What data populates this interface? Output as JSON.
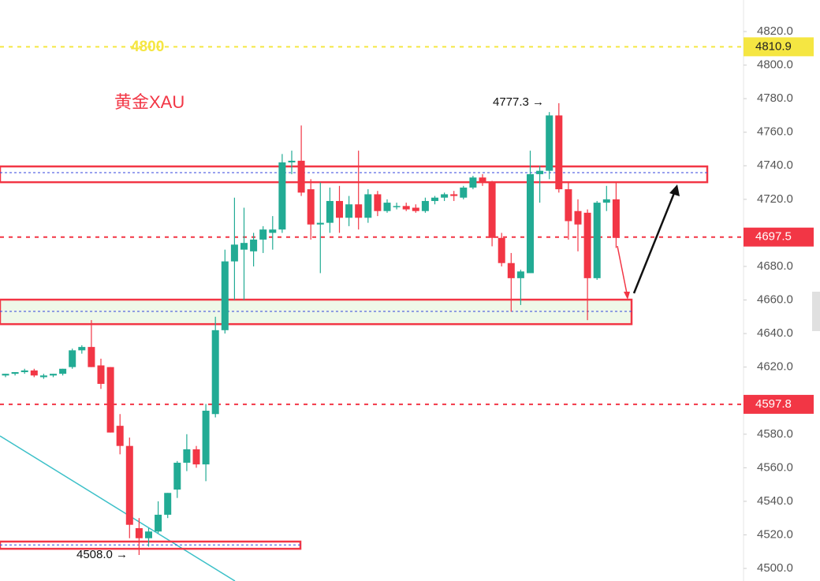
{
  "chart_data": {
    "type": "candlestick",
    "title": "黄金XAU",
    "up_color": "#22ab94",
    "down_color": "#f23645",
    "open": [
      4615,
      4616,
      4617,
      4618,
      4614,
      4615,
      4616,
      4620,
      4630,
      4632,
      4621,
      4620,
      4585,
      4573,
      4524,
      4518,
      4522,
      4532,
      4547,
      4563,
      4571,
      4562,
      4592,
      4642,
      4683,
      4690,
      4689,
      4696,
      4700,
      4702,
      4742,
      4743,
      4726,
      4705,
      4706,
      4719,
      4709,
      4717,
      4709,
      4723,
      4713,
      4716,
      4716,
      4715,
      4713,
      4719,
      4721,
      4723,
      4721,
      4727,
      4733,
      4730,
      4697,
      4682,
      4673,
      4676,
      4735,
      4737,
      4770,
      4726,
      4713,
      4712,
      4673,
      4718,
      4720
    ],
    "high": [
      4616,
      4617,
      4619,
      4619,
      4616,
      4616,
      4619,
      4631,
      4633,
      4648,
      4625,
      4620,
      4592,
      4578,
      4530,
      4524,
      4540,
      4545,
      4564,
      4580,
      4573,
      4598,
      4650,
      4690,
      4721,
      4715,
      4700,
      4704,
      4710,
      4747,
      4749,
      4764,
      4732,
      4730,
      4727,
      4728,
      4722,
      4749,
      4726,
      4725,
      4720,
      4718,
      4718,
      4717,
      4721,
      4722,
      4724,
      4725,
      4728,
      4734,
      4735,
      4731,
      4700,
      4688,
      4678,
      4749,
      4740,
      4772,
      4777.3,
      4730,
      4720,
      4714,
      4719,
      4728,
      4730
    ],
    "low": [
      4614,
      4615,
      4616,
      4614,
      4613,
      4614,
      4615,
      4619,
      4628,
      4620,
      4607,
      4581,
      4568,
      4518,
      4508,
      4513,
      4521,
      4530,
      4542,
      4558,
      4560,
      4552,
      4590,
      4640,
      4660,
      4660,
      4680,
      4688,
      4690,
      4700,
      4735,
      4722,
      4696,
      4676,
      4700,
      4700,
      4704,
      4702,
      4706,
      4710,
      4712,
      4714,
      4713,
      4712,
      4712,
      4717,
      4719,
      4719,
      4720,
      4726,
      4728,
      4692,
      4680,
      4653,
      4657,
      4676,
      4718,
      4732,
      4724,
      4696,
      4689,
      4648,
      4672,
      4713,
      4691
    ],
    "close": [
      4616,
      4617,
      4618,
      4615,
      4615,
      4616,
      4619,
      4630,
      4632,
      4620,
      4610,
      4581,
      4573,
      4526,
      4518,
      4522,
      4532,
      4545,
      4563,
      4571,
      4562,
      4594,
      4642,
      4683,
      4693,
      4694,
      4696,
      4702,
      4702,
      4742,
      4743,
      4724,
      4705,
      4706,
      4719,
      4709,
      4717,
      4709,
      4723,
      4713,
      4718,
      4716,
      4714,
      4713,
      4719,
      4721,
      4723,
      4722,
      4727,
      4733,
      4730,
      4697,
      4682,
      4673,
      4677,
      4735,
      4737,
      4770,
      4726,
      4707,
      4705,
      4673,
      4718,
      4720,
      4697
    ],
    "ylim": [
      4492.5,
      4838.8
    ],
    "yticks": [
      {
        "value": 4500,
        "label": "4500.0"
      },
      {
        "value": 4520,
        "label": "4520.0"
      },
      {
        "value": 4540,
        "label": "4540.0"
      },
      {
        "value": 4560,
        "label": "4560.0"
      },
      {
        "value": 4580,
        "label": "4580.0"
      },
      {
        "value": 4600,
        "label": "4600.0"
      },
      {
        "value": 4620,
        "label": "4620.0"
      },
      {
        "value": 4640,
        "label": "4640.0"
      },
      {
        "value": 4660,
        "label": "4660.0"
      },
      {
        "value": 4680,
        "label": "4680.0"
      },
      {
        "value": 4700,
        "label": "4700.0"
      },
      {
        "value": 4720,
        "label": "4720.0"
      },
      {
        "value": 4740,
        "label": "4740.0"
      },
      {
        "value": 4760,
        "label": "4760.0"
      },
      {
        "value": 4780,
        "label": "4780.0"
      },
      {
        "value": 4800,
        "label": "4800.0"
      },
      {
        "value": 4820,
        "label": "4820.0"
      }
    ],
    "price_lines": [
      {
        "value": 4810.9,
        "color": "#f5e642",
        "text_color": "#222"
      },
      {
        "value": 4697.5,
        "color": "#f23645",
        "text_color": "#fff"
      },
      {
        "value": 4597.8,
        "color": "#f23645",
        "text_color": "#fff"
      }
    ],
    "zones": [
      {
        "low": 4730.2,
        "high": 4739.6,
        "mid": 4735.9
      },
      {
        "low": 4645.6,
        "high": 4660.2,
        "mid": 4653.2
      },
      {
        "low": 4511.7,
        "high": 4516,
        "mid": 4514
      }
    ],
    "level_label": "4800",
    "high_label": "4777.3 →",
    "low_label": "4508.0 →"
  }
}
